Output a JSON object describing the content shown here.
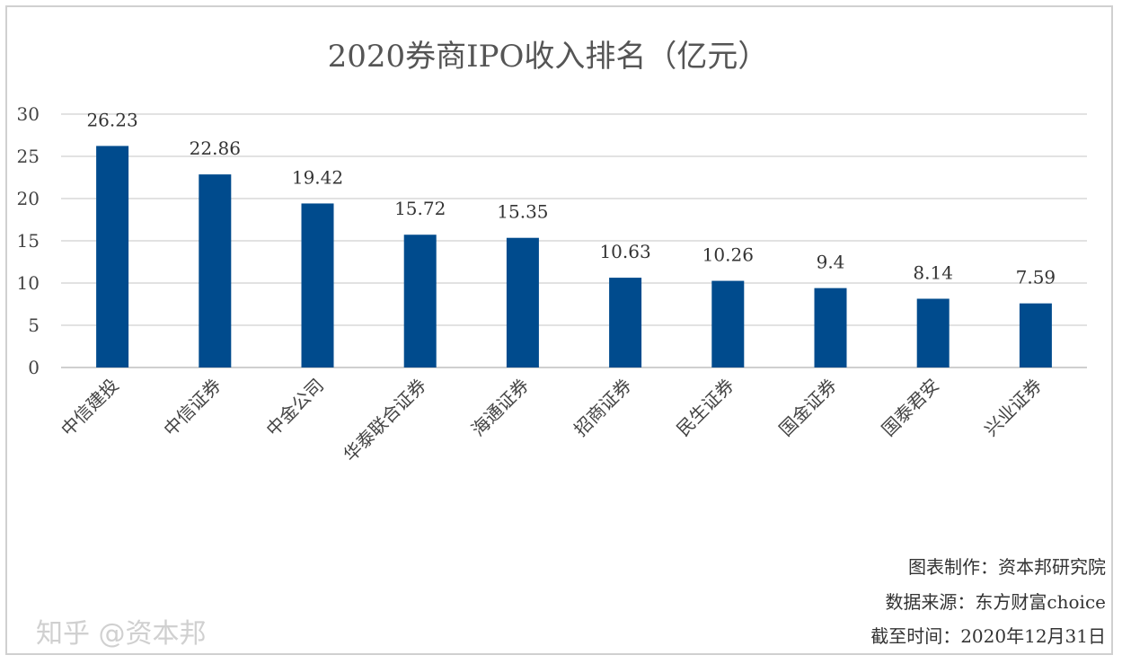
{
  "chart_data": {
    "type": "bar",
    "title": "2020券商IPO收入排名（亿元）",
    "categories": [
      "中信建投",
      "中信证券",
      "中金公司",
      "华泰联合证券",
      "海通证券",
      "招商证券",
      "民生证券",
      "国金证券",
      "国泰君安",
      "兴业证券"
    ],
    "values": [
      26.23,
      22.86,
      19.42,
      15.72,
      15.35,
      10.63,
      10.26,
      9.4,
      8.14,
      7.59
    ],
    "data_labels": [
      "26.23",
      "22.86",
      "19.42",
      "15.72",
      "15.35",
      "10.63",
      "10.26",
      "9.4",
      "8.14",
      "7.59"
    ],
    "ylim": [
      0,
      30
    ],
    "yticks": [
      0,
      5,
      10,
      15,
      20,
      25,
      30
    ],
    "xlabel": "",
    "ylabel": "",
    "grid": true,
    "legend": "none",
    "bar_color": "#004B8D"
  },
  "notes": {
    "maker": "图表制作：资本邦研究院",
    "source": "数据来源：东方财富choice",
    "date": "截至时间：2020年12月31日"
  },
  "watermark": "知乎 @资本邦"
}
